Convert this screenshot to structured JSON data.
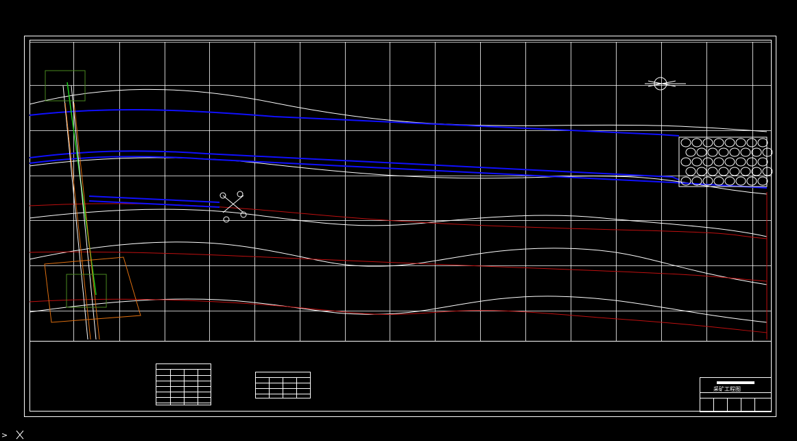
{
  "title_block": {
    "title": "采矿工程图"
  },
  "command_prompt": ">"
}
